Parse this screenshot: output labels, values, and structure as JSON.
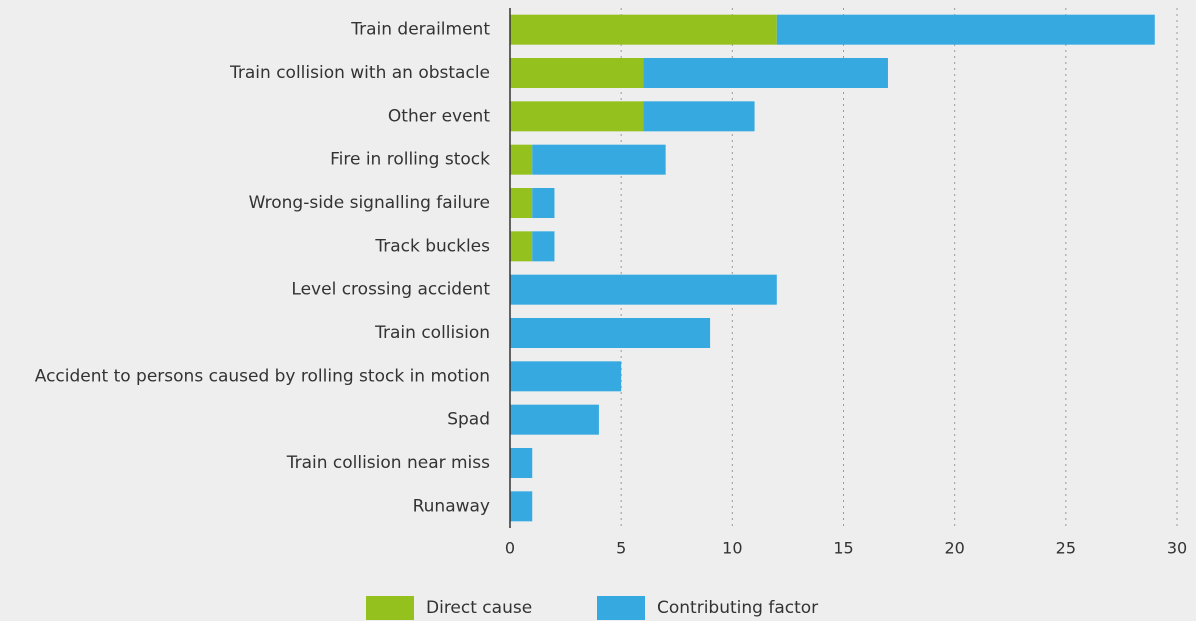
{
  "chart_data": {
    "type": "stacked_barh",
    "categories": [
      "Train derailment",
      "Train collision with an obstacle",
      "Other event",
      "Fire in rolling stock",
      "Wrong-side signalling failure",
      "Track buckles",
      "Level crossing accident",
      "Train collision",
      "Accident to persons caused by rolling stock in motion",
      "Spad",
      "Train collision near miss",
      "Runaway"
    ],
    "series": [
      {
        "name": "Direct cause",
        "color": "#95c11f",
        "values": [
          12,
          6,
          6,
          1,
          1,
          1,
          0,
          0,
          0,
          0,
          0,
          0
        ]
      },
      {
        "name": "Contributing factor",
        "color": "#36a9e1",
        "values": [
          17,
          11,
          5,
          6,
          1,
          1,
          12,
          9,
          5,
          4,
          1,
          1
        ]
      }
    ],
    "xlim": [
      0,
      30
    ],
    "xticks": [
      0,
      5,
      10,
      15,
      20,
      25,
      30
    ],
    "grid": true,
    "legend": "bottom"
  }
}
